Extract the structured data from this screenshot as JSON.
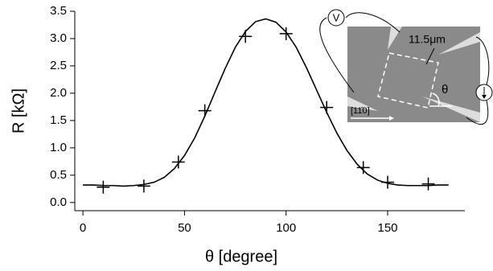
{
  "chart_data": {
    "type": "scatter",
    "xlabel": "θ [degree]",
    "ylabel": "R [kΩ]",
    "xlim": [
      -4,
      188
    ],
    "ylim": [
      -0.15,
      3.5
    ],
    "xticks": [
      0,
      50,
      100,
      150
    ],
    "yticks": [
      {
        "value": 0,
        "label": "0.0"
      },
      0.5,
      {
        "value": 1,
        "label": "1.0"
      },
      1.5,
      {
        "value": 2,
        "label": "2.0"
      },
      2.5,
      {
        "value": 3,
        "label": "3.0"
      },
      3.5
    ],
    "series": [
      {
        "type": "scatter",
        "color": "#000000",
        "x": [
          10,
          30,
          47,
          60,
          80,
          100,
          120,
          138,
          150,
          170
        ],
        "values": [
          0.28,
          0.3,
          0.74,
          1.68,
          3.04,
          3.09,
          1.74,
          0.64,
          0.37,
          0.34
        ]
      },
      {
        "type": "line",
        "color": "#000000",
        "x": [
          0,
          5,
          10,
          15,
          20,
          25,
          30,
          35,
          40,
          45,
          50,
          55,
          60,
          65,
          70,
          75,
          80,
          85,
          90,
          95,
          100,
          105,
          110,
          115,
          120,
          125,
          130,
          135,
          140,
          145,
          150,
          155,
          160,
          165,
          170,
          175,
          180
        ],
        "values": [
          0.32,
          0.32,
          0.31,
          0.31,
          0.3,
          0.31,
          0.33,
          0.37,
          0.46,
          0.62,
          0.86,
          1.18,
          1.58,
          2.02,
          2.45,
          2.84,
          3.13,
          3.31,
          3.36,
          3.3,
          3.12,
          2.84,
          2.47,
          2.06,
          1.65,
          1.27,
          0.95,
          0.7,
          0.52,
          0.41,
          0.35,
          0.32,
          0.31,
          0.31,
          0.31,
          0.32,
          0.32
        ]
      }
    ]
  },
  "inset": {
    "voltage_label": "V",
    "scale_label": "11.5μm",
    "angle_label": "θ",
    "direction_label": "[11̄0]"
  }
}
